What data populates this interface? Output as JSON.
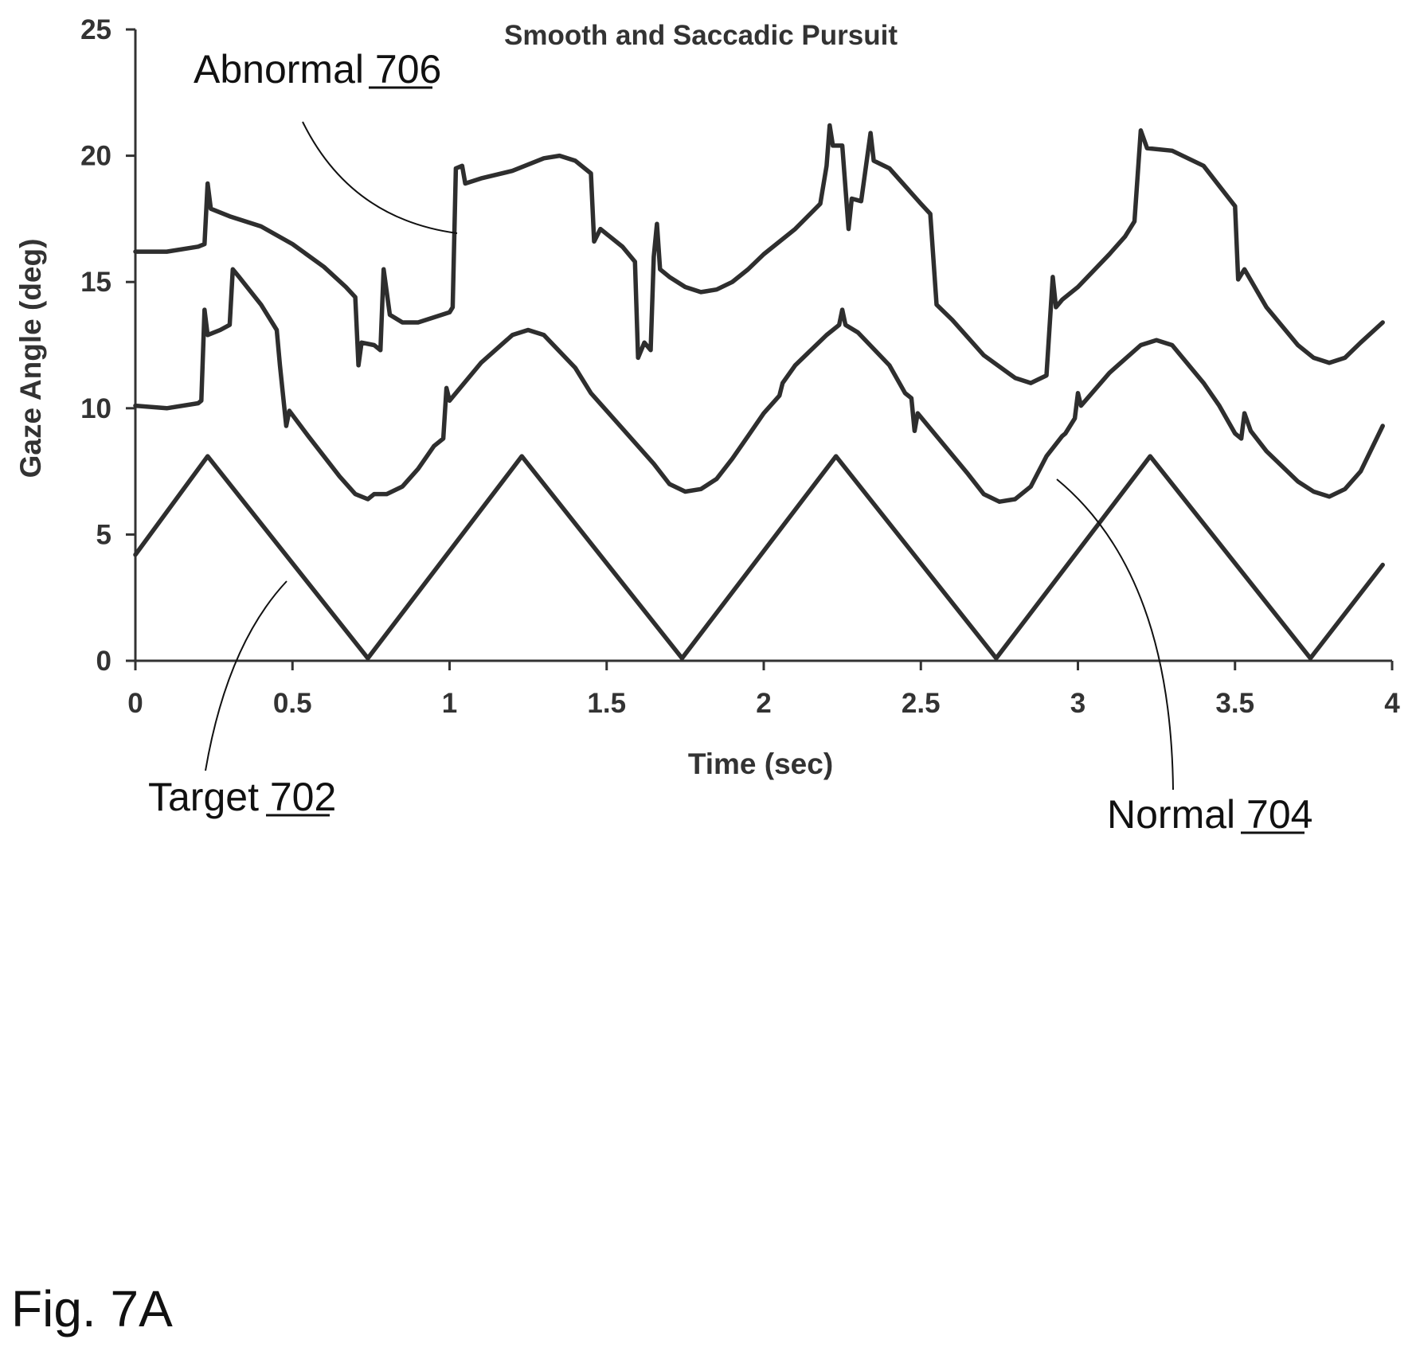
{
  "figure_label": "Fig. 7A",
  "chart_data": {
    "type": "line",
    "title": "Smooth and Saccadic Pursuit",
    "xlabel": "Time (sec)",
    "ylabel": "Gaze Angle (deg)",
    "xlim": [
      0,
      4
    ],
    "ylim": [
      0,
      25
    ],
    "x_ticks": [
      "0",
      "0.5",
      "1",
      "1.5",
      "2",
      "2.5",
      "3",
      "3.5",
      "4"
    ],
    "y_ticks": [
      "0",
      "5",
      "10",
      "15",
      "20",
      "25"
    ],
    "grid": false,
    "series": [
      {
        "id": "target",
        "callout_name": "Target",
        "callout_ref": "702",
        "points": [
          [
            0,
            4.2
          ],
          [
            0.23,
            8.1
          ],
          [
            0.74,
            0.1
          ],
          [
            1.23,
            8.1
          ],
          [
            1.74,
            0.1
          ],
          [
            2.23,
            8.1
          ],
          [
            2.74,
            0.1
          ],
          [
            3.23,
            8.1
          ],
          [
            3.74,
            0.1
          ],
          [
            3.97,
            3.8
          ]
        ]
      },
      {
        "id": "normal",
        "callout_name": "Normal",
        "callout_ref": "704",
        "points": [
          [
            0,
            10.1
          ],
          [
            0.1,
            10.0
          ],
          [
            0.2,
            10.2
          ],
          [
            0.21,
            10.3
          ],
          [
            0.22,
            13.9
          ],
          [
            0.23,
            12.9
          ],
          [
            0.27,
            13.1
          ],
          [
            0.3,
            13.3
          ],
          [
            0.31,
            15.5
          ],
          [
            0.33,
            15.2
          ],
          [
            0.4,
            14.1
          ],
          [
            0.45,
            13.1
          ],
          [
            0.46,
            11.7
          ],
          [
            0.48,
            9.3
          ],
          [
            0.49,
            9.9
          ],
          [
            0.55,
            8.9
          ],
          [
            0.65,
            7.3
          ],
          [
            0.7,
            6.6
          ],
          [
            0.74,
            6.4
          ],
          [
            0.76,
            6.6
          ],
          [
            0.8,
            6.6
          ],
          [
            0.85,
            6.9
          ],
          [
            0.9,
            7.6
          ],
          [
            0.95,
            8.5
          ],
          [
            0.98,
            8.8
          ],
          [
            0.99,
            10.8
          ],
          [
            1.0,
            10.3
          ],
          [
            1.1,
            11.8
          ],
          [
            1.2,
            12.9
          ],
          [
            1.25,
            13.1
          ],
          [
            1.3,
            12.9
          ],
          [
            1.4,
            11.6
          ],
          [
            1.45,
            10.6
          ],
          [
            1.55,
            9.2
          ],
          [
            1.65,
            7.8
          ],
          [
            1.7,
            7.0
          ],
          [
            1.75,
            6.7
          ],
          [
            1.8,
            6.8
          ],
          [
            1.85,
            7.2
          ],
          [
            1.9,
            8.0
          ],
          [
            1.95,
            8.9
          ],
          [
            2.0,
            9.8
          ],
          [
            2.05,
            10.5
          ],
          [
            2.06,
            11.0
          ],
          [
            2.1,
            11.7
          ],
          [
            2.2,
            12.9
          ],
          [
            2.24,
            13.3
          ],
          [
            2.25,
            13.9
          ],
          [
            2.26,
            13.3
          ],
          [
            2.3,
            13.0
          ],
          [
            2.4,
            11.7
          ],
          [
            2.45,
            10.6
          ],
          [
            2.47,
            10.4
          ],
          [
            2.48,
            9.1
          ],
          [
            2.49,
            9.8
          ],
          [
            2.55,
            8.9
          ],
          [
            2.65,
            7.4
          ],
          [
            2.7,
            6.6
          ],
          [
            2.75,
            6.3
          ],
          [
            2.8,
            6.4
          ],
          [
            2.85,
            6.9
          ],
          [
            2.9,
            8.1
          ],
          [
            2.95,
            8.9
          ],
          [
            2.96,
            9.0
          ],
          [
            2.99,
            9.6
          ],
          [
            3.0,
            10.6
          ],
          [
            3.01,
            10.1
          ],
          [
            3.1,
            11.4
          ],
          [
            3.2,
            12.5
          ],
          [
            3.25,
            12.7
          ],
          [
            3.3,
            12.5
          ],
          [
            3.4,
            11.0
          ],
          [
            3.45,
            10.1
          ],
          [
            3.5,
            9.0
          ],
          [
            3.52,
            8.8
          ],
          [
            3.53,
            9.8
          ],
          [
            3.55,
            9.1
          ],
          [
            3.6,
            8.3
          ],
          [
            3.7,
            7.1
          ],
          [
            3.75,
            6.7
          ],
          [
            3.8,
            6.5
          ],
          [
            3.85,
            6.8
          ],
          [
            3.9,
            7.5
          ],
          [
            3.97,
            9.3
          ]
        ]
      },
      {
        "id": "abnormal",
        "callout_name": "Abnormal",
        "callout_ref": "706",
        "points": [
          [
            0,
            16.2
          ],
          [
            0.1,
            16.2
          ],
          [
            0.2,
            16.4
          ],
          [
            0.22,
            16.5
          ],
          [
            0.23,
            18.9
          ],
          [
            0.24,
            17.9
          ],
          [
            0.3,
            17.6
          ],
          [
            0.4,
            17.2
          ],
          [
            0.5,
            16.5
          ],
          [
            0.6,
            15.6
          ],
          [
            0.67,
            14.8
          ],
          [
            0.7,
            14.4
          ],
          [
            0.71,
            11.7
          ],
          [
            0.72,
            12.6
          ],
          [
            0.76,
            12.5
          ],
          [
            0.78,
            12.3
          ],
          [
            0.79,
            15.5
          ],
          [
            0.81,
            13.7
          ],
          [
            0.85,
            13.4
          ],
          [
            0.9,
            13.4
          ],
          [
            0.95,
            13.6
          ],
          [
            1.0,
            13.8
          ],
          [
            1.01,
            14.0
          ],
          [
            1.02,
            19.5
          ],
          [
            1.04,
            19.6
          ],
          [
            1.05,
            18.9
          ],
          [
            1.1,
            19.1
          ],
          [
            1.2,
            19.4
          ],
          [
            1.3,
            19.9
          ],
          [
            1.35,
            20.0
          ],
          [
            1.4,
            19.8
          ],
          [
            1.45,
            19.3
          ],
          [
            1.46,
            16.6
          ],
          [
            1.48,
            17.1
          ],
          [
            1.55,
            16.4
          ],
          [
            1.59,
            15.8
          ],
          [
            1.6,
            12.0
          ],
          [
            1.62,
            12.6
          ],
          [
            1.64,
            12.3
          ],
          [
            1.65,
            16.0
          ],
          [
            1.66,
            17.3
          ],
          [
            1.67,
            15.5
          ],
          [
            1.7,
            15.2
          ],
          [
            1.75,
            14.8
          ],
          [
            1.8,
            14.6
          ],
          [
            1.85,
            14.7
          ],
          [
            1.9,
            15.0
          ],
          [
            1.95,
            15.5
          ],
          [
            2.0,
            16.1
          ],
          [
            2.1,
            17.1
          ],
          [
            2.18,
            18.1
          ],
          [
            2.2,
            19.6
          ],
          [
            2.21,
            21.2
          ],
          [
            2.22,
            20.4
          ],
          [
            2.25,
            20.4
          ],
          [
            2.27,
            17.1
          ],
          [
            2.28,
            18.3
          ],
          [
            2.31,
            18.2
          ],
          [
            2.34,
            20.9
          ],
          [
            2.35,
            19.8
          ],
          [
            2.4,
            19.5
          ],
          [
            2.5,
            18.1
          ],
          [
            2.53,
            17.7
          ],
          [
            2.55,
            14.1
          ],
          [
            2.6,
            13.5
          ],
          [
            2.7,
            12.1
          ],
          [
            2.8,
            11.2
          ],
          [
            2.85,
            11.0
          ],
          [
            2.9,
            11.3
          ],
          [
            2.92,
            15.2
          ],
          [
            2.93,
            14.0
          ],
          [
            2.95,
            14.3
          ],
          [
            3.0,
            14.8
          ],
          [
            3.1,
            16.1
          ],
          [
            3.15,
            16.8
          ],
          [
            3.18,
            17.4
          ],
          [
            3.2,
            21.0
          ],
          [
            3.22,
            20.3
          ],
          [
            3.3,
            20.2
          ],
          [
            3.4,
            19.6
          ],
          [
            3.5,
            18.0
          ],
          [
            3.51,
            15.1
          ],
          [
            3.53,
            15.5
          ],
          [
            3.6,
            14.0
          ],
          [
            3.7,
            12.5
          ],
          [
            3.75,
            12.0
          ],
          [
            3.8,
            11.8
          ],
          [
            3.85,
            12.0
          ],
          [
            3.9,
            12.6
          ],
          [
            3.97,
            13.4
          ]
        ]
      }
    ]
  }
}
